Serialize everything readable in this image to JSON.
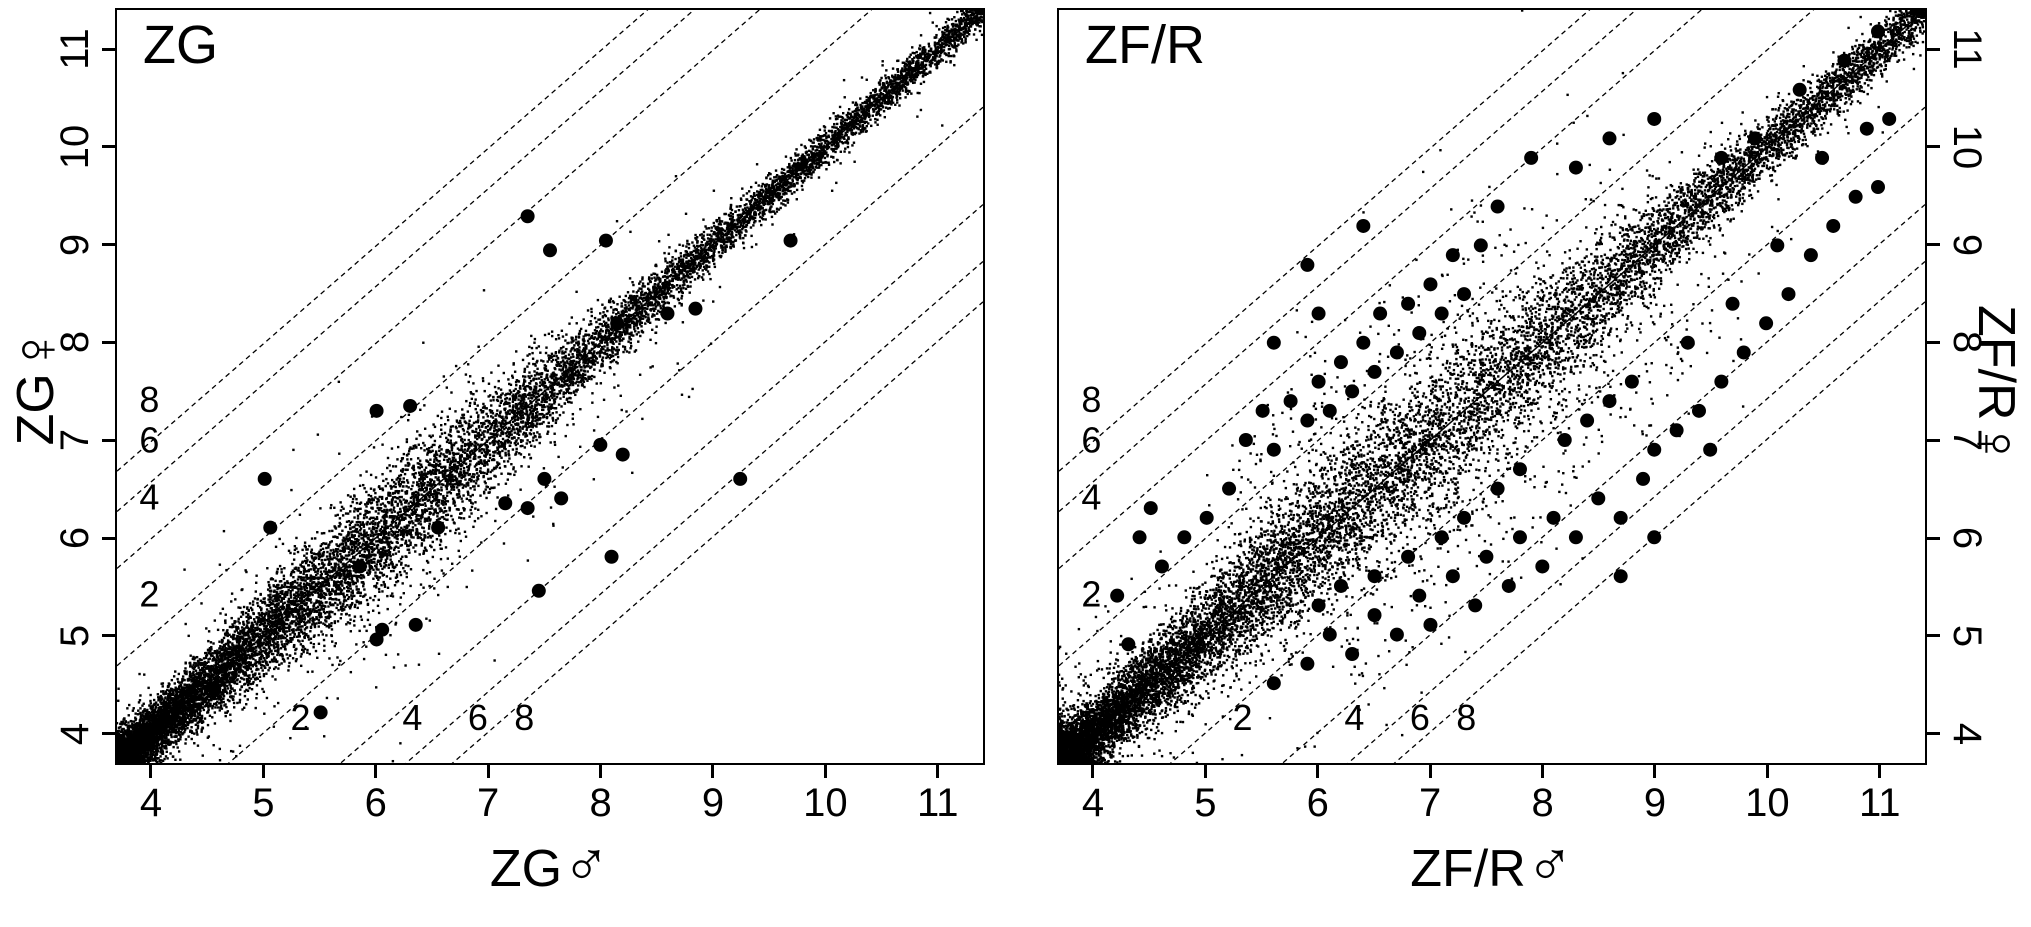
{
  "figure": {
    "background": "#ffffff",
    "ink": "#000000"
  },
  "chart_data": [
    {
      "type": "scatter",
      "panel": "left",
      "title": "ZG",
      "xlabel_text": "ZG",
      "xlabel_symbol": "♂",
      "ylabel_text": "ZG",
      "ylabel_symbol": "♀",
      "y_axis_side": "left",
      "xlim": [
        3.68,
        11.42
      ],
      "ylim": [
        3.68,
        11.42
      ],
      "xticks": [
        4,
        5,
        6,
        7,
        8,
        9,
        10,
        11
      ],
      "yticks": [
        4,
        5,
        6,
        7,
        8,
        9,
        10,
        11
      ],
      "grid": false,
      "identity_line": true,
      "fold_change_lines": {
        "style": "dashed",
        "offsets": [
          1,
          2,
          2.585,
          3
        ],
        "labels": [
          "2",
          "4",
          "6",
          "8"
        ],
        "upper_label_x": 3.97,
        "lower_label_y": 4.12
      },
      "dense_cloud": {
        "n": 15000,
        "seed": 7,
        "x_distribution": "skewed_low",
        "skew": 2.0,
        "band_sd_base": 0.09,
        "band_sd_extra": 0.22,
        "band_sd_center": 6.2,
        "band_sd_width": 1.8,
        "outlier_frac": 0.03,
        "outlier_scale": 3.0,
        "extra_bands": [
          {
            "prob": 0.012,
            "x_min": 5.5,
            "x_max": 9.0,
            "offset": -0.9,
            "sd": 0.4
          }
        ]
      },
      "outlier_points": [
        [
          5.0,
          6.6
        ],
        [
          5.05,
          6.1
        ],
        [
          6.0,
          7.3
        ],
        [
          6.3,
          7.35
        ],
        [
          7.35,
          9.3
        ],
        [
          7.55,
          8.95
        ],
        [
          8.05,
          9.05
        ],
        [
          8.15,
          8.2
        ],
        [
          8.6,
          8.3
        ],
        [
          8.85,
          8.35
        ],
        [
          9.25,
          6.6
        ],
        [
          8.0,
          6.95
        ],
        [
          8.2,
          6.85
        ],
        [
          7.5,
          6.6
        ],
        [
          7.15,
          6.35
        ],
        [
          7.35,
          6.3
        ],
        [
          7.65,
          6.4
        ],
        [
          8.1,
          5.8
        ],
        [
          7.45,
          5.45
        ],
        [
          6.35,
          5.1
        ],
        [
          6.05,
          5.05
        ],
        [
          6.0,
          4.95
        ],
        [
          5.5,
          4.2
        ],
        [
          4.55,
          4.45
        ],
        [
          5.85,
          5.7
        ],
        [
          6.55,
          6.1
        ],
        [
          9.7,
          9.05
        ]
      ]
    },
    {
      "type": "scatter",
      "panel": "right",
      "title": "ZF/R",
      "xlabel_text": "ZF/R",
      "xlabel_symbol": "♂",
      "ylabel_text": "ZF/R",
      "ylabel_symbol": "♀",
      "y_axis_side": "right",
      "xlim": [
        3.68,
        11.42
      ],
      "ylim": [
        3.68,
        11.42
      ],
      "xticks": [
        4,
        5,
        6,
        7,
        8,
        9,
        10,
        11
      ],
      "yticks": [
        4,
        5,
        6,
        7,
        8,
        9,
        10,
        11
      ],
      "grid": false,
      "identity_line": true,
      "fold_change_lines": {
        "style": "dashed",
        "offsets": [
          1,
          2,
          2.585,
          3
        ],
        "labels": [
          "2",
          "4",
          "6",
          "8"
        ],
        "upper_label_x": 3.97,
        "lower_label_y": 4.12
      },
      "dense_cloud": {
        "n": 15000,
        "seed": 13,
        "x_distribution": "skewed_low",
        "skew": 1.9,
        "band_sd_base": 0.12,
        "band_sd_extra": 0.3,
        "band_sd_center": 6.9,
        "band_sd_width": 2.2,
        "outlier_frac": 0.05,
        "outlier_scale": 3.0,
        "extra_bands": [
          {
            "prob": 0.05,
            "x_min": 6.2,
            "x_max": 9.8,
            "offset": -1.15,
            "sd": 0.45
          },
          {
            "prob": 0.035,
            "x_min": 5.2,
            "x_max": 7.8,
            "offset": 1.15,
            "sd": 0.5
          }
        ]
      },
      "outlier_points": [
        [
          5.35,
          7.0
        ],
        [
          5.5,
          7.3
        ],
        [
          5.6,
          6.9
        ],
        [
          5.75,
          7.4
        ],
        [
          5.9,
          7.2
        ],
        [
          6.0,
          7.6
        ],
        [
          6.1,
          7.3
        ],
        [
          6.2,
          7.8
        ],
        [
          6.3,
          7.5
        ],
        [
          6.4,
          8.0
        ],
        [
          6.5,
          7.7
        ],
        [
          6.55,
          8.3
        ],
        [
          6.7,
          7.9
        ],
        [
          6.8,
          8.4
        ],
        [
          6.9,
          8.1
        ],
        [
          7.0,
          8.6
        ],
        [
          7.1,
          8.3
        ],
        [
          7.2,
          8.9
        ],
        [
          7.3,
          8.5
        ],
        [
          7.45,
          9.0
        ],
        [
          6.0,
          8.3
        ],
        [
          5.6,
          8.0
        ],
        [
          5.2,
          6.5
        ],
        [
          5.0,
          6.2
        ],
        [
          4.8,
          6.0
        ],
        [
          4.6,
          5.7
        ],
        [
          4.5,
          6.3
        ],
        [
          7.6,
          9.4
        ],
        [
          7.9,
          9.9
        ],
        [
          8.3,
          9.8
        ],
        [
          8.6,
          10.1
        ],
        [
          9.0,
          10.3
        ],
        [
          6.4,
          9.2
        ],
        [
          5.9,
          8.8
        ],
        [
          4.3,
          4.9
        ],
        [
          4.2,
          5.4
        ],
        [
          4.4,
          6.0
        ],
        [
          6.1,
          5.0
        ],
        [
          6.3,
          4.8
        ],
        [
          6.5,
          5.2
        ],
        [
          6.7,
          5.0
        ],
        [
          6.9,
          5.4
        ],
        [
          7.0,
          5.1
        ],
        [
          7.2,
          5.6
        ],
        [
          7.4,
          5.3
        ],
        [
          7.5,
          5.8
        ],
        [
          7.7,
          5.5
        ],
        [
          7.8,
          6.0
        ],
        [
          8.0,
          5.7
        ],
        [
          8.1,
          6.2
        ],
        [
          8.3,
          6.0
        ],
        [
          8.5,
          6.4
        ],
        [
          8.7,
          6.2
        ],
        [
          8.9,
          6.6
        ],
        [
          9.0,
          6.9
        ],
        [
          9.2,
          7.1
        ],
        [
          9.4,
          7.3
        ],
        [
          9.6,
          7.6
        ],
        [
          9.8,
          7.9
        ],
        [
          10.0,
          8.2
        ],
        [
          10.2,
          8.5
        ],
        [
          10.4,
          8.9
        ],
        [
          10.6,
          9.2
        ],
        [
          10.8,
          9.5
        ],
        [
          8.2,
          7.0
        ],
        [
          8.4,
          7.2
        ],
        [
          8.6,
          7.4
        ],
        [
          8.8,
          7.6
        ],
        [
          7.6,
          6.5
        ],
        [
          7.8,
          6.7
        ],
        [
          7.3,
          6.2
        ],
        [
          7.1,
          6.0
        ],
        [
          6.8,
          5.8
        ],
        [
          6.5,
          5.6
        ],
        [
          9.5,
          6.9
        ],
        [
          9.0,
          6.0
        ],
        [
          8.7,
          5.6
        ],
        [
          9.3,
          8.0
        ],
        [
          9.7,
          8.4
        ],
        [
          10.1,
          9.0
        ],
        [
          10.5,
          9.9
        ],
        [
          10.9,
          10.2
        ],
        [
          11.0,
          9.6
        ],
        [
          5.9,
          4.7
        ],
        [
          5.6,
          4.5
        ],
        [
          6.2,
          5.5
        ],
        [
          6.0,
          5.3
        ],
        [
          9.9,
          10.1
        ],
        [
          10.3,
          10.6
        ],
        [
          10.7,
          10.9
        ],
        [
          11.0,
          11.2
        ],
        [
          9.6,
          9.9
        ],
        [
          11.1,
          10.3
        ]
      ]
    }
  ]
}
